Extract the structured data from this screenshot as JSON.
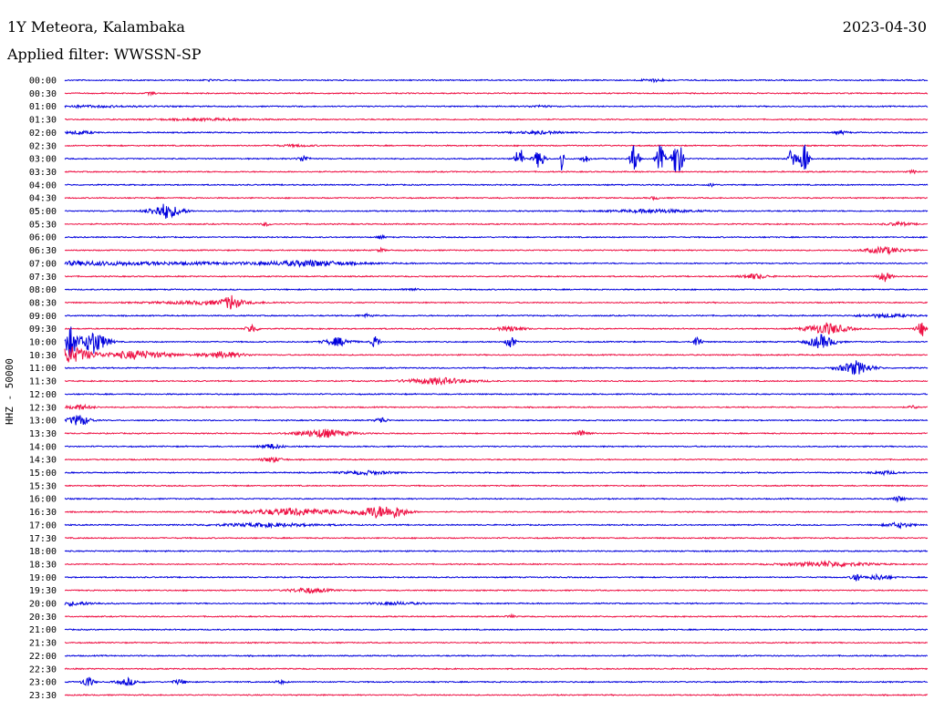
{
  "header": {
    "station": "1Y Meteora, Kalambaka",
    "date": "2023-04-30",
    "filter_label": "Applied filter: WWSSN-SP",
    "channel_label": "HHZ - 50000"
  },
  "colors": {
    "blue": "#0000dd",
    "red": "#ee1144"
  },
  "chart_data": {
    "type": "line",
    "title": "1Y Meteora, Kalambaka",
    "subtitle": "Applied filter: WWSSN-SP",
    "ylabel": "HHZ - 50000",
    "xlabel": "",
    "row_labels": [
      "00:00",
      "00:30",
      "01:00",
      "01:30",
      "02:00",
      "02:30",
      "03:00",
      "03:30",
      "04:00",
      "04:30",
      "05:00",
      "05:30",
      "06:00",
      "06:30",
      "07:00",
      "07:30",
      "08:00",
      "08:30",
      "09:00",
      "09:30",
      "10:00",
      "10:30",
      "11:00",
      "11:30",
      "12:00",
      "12:30",
      "13:00",
      "13:30",
      "14:00",
      "14:30",
      "15:00",
      "15:30",
      "16:00",
      "16:30",
      "17:00",
      "17:30",
      "18:00",
      "18:30",
      "19:00",
      "19:30",
      "20:00",
      "20:30",
      "21:00",
      "21:30",
      "22:00",
      "22:30",
      "23:00",
      "23:30"
    ],
    "row_colors": [
      "blue",
      "red"
    ],
    "minutes_per_row": 30,
    "events": [
      {
        "row": 0,
        "min": 5,
        "amp": 1,
        "dur": 0.3
      },
      {
        "row": 0,
        "min": 20.5,
        "amp": 1.5,
        "dur": 1
      },
      {
        "row": 1,
        "min": 3,
        "amp": 2,
        "dur": 0.3
      },
      {
        "row": 2,
        "min": 0.5,
        "amp": 1,
        "dur": 5
      },
      {
        "row": 2,
        "min": 16.5,
        "amp": 1,
        "dur": 1
      },
      {
        "row": 3,
        "min": 5,
        "amp": 1,
        "dur": 4
      },
      {
        "row": 4,
        "min": 0.5,
        "amp": 2,
        "dur": 1
      },
      {
        "row": 4,
        "min": 16.5,
        "amp": 1.5,
        "dur": 2
      },
      {
        "row": 4,
        "min": 27,
        "amp": 2,
        "dur": 0.5
      },
      {
        "row": 5,
        "min": 8,
        "amp": 1,
        "dur": 1.5
      },
      {
        "row": 6,
        "min": 8.3,
        "amp": 4,
        "dur": 0.4
      },
      {
        "row": 6,
        "min": 15.8,
        "amp": 20,
        "dur": 0.25
      },
      {
        "row": 6,
        "min": 16.5,
        "amp": 12,
        "dur": 0.4
      },
      {
        "row": 6,
        "min": 17.3,
        "amp": 25,
        "dur": 0.1
      },
      {
        "row": 6,
        "min": 18.1,
        "amp": 5,
        "dur": 0.3
      },
      {
        "row": 6,
        "min": 19.8,
        "amp": 22,
        "dur": 0.3
      },
      {
        "row": 6,
        "min": 20.7,
        "amp": 18,
        "dur": 0.3
      },
      {
        "row": 6,
        "min": 21.3,
        "amp": 30,
        "dur": 0.35
      },
      {
        "row": 6,
        "min": 25.3,
        "amp": 18,
        "dur": 0.25
      },
      {
        "row": 6,
        "min": 25.7,
        "amp": 22,
        "dur": 0.3
      },
      {
        "row": 7,
        "min": 29.5,
        "amp": 2,
        "dur": 0.3
      },
      {
        "row": 8,
        "min": 22.5,
        "amp": 2,
        "dur": 0.3
      },
      {
        "row": 9,
        "min": 20.5,
        "amp": 2,
        "dur": 0.3
      },
      {
        "row": 10,
        "min": 3.5,
        "amp": 9,
        "dur": 1.2
      },
      {
        "row": 10,
        "min": 20.5,
        "amp": 2,
        "dur": 3
      },
      {
        "row": 11,
        "min": 7,
        "amp": 2,
        "dur": 0.3
      },
      {
        "row": 11,
        "min": 29,
        "amp": 2,
        "dur": 1
      },
      {
        "row": 12,
        "min": 11,
        "amp": 2,
        "dur": 0.3
      },
      {
        "row": 13,
        "min": 11,
        "amp": 2,
        "dur": 0.3
      },
      {
        "row": 13,
        "min": 28.5,
        "amp": 4,
        "dur": 1.5
      },
      {
        "row": 14,
        "min": 0.5,
        "amp": 2,
        "dur": 15
      },
      {
        "row": 14,
        "min": 8.5,
        "amp": 3,
        "dur": 3
      },
      {
        "row": 15,
        "min": 24,
        "amp": 3,
        "dur": 1
      },
      {
        "row": 15,
        "min": 28.5,
        "amp": 6,
        "dur": 0.5
      },
      {
        "row": 16,
        "min": 12,
        "amp": 1.5,
        "dur": 0.6
      },
      {
        "row": 17,
        "min": 5,
        "amp": 2,
        "dur": 4
      },
      {
        "row": 17,
        "min": 5.8,
        "amp": 8,
        "dur": 0.6
      },
      {
        "row": 18,
        "min": 10.5,
        "amp": 1.5,
        "dur": 0.6
      },
      {
        "row": 18,
        "min": 28.5,
        "amp": 2,
        "dur": 2
      },
      {
        "row": 19,
        "min": 6.5,
        "amp": 6,
        "dur": 0.4
      },
      {
        "row": 19,
        "min": 15.5,
        "amp": 3,
        "dur": 1
      },
      {
        "row": 19,
        "min": 26.5,
        "amp": 7,
        "dur": 1.5
      },
      {
        "row": 19,
        "min": 29.8,
        "amp": 9,
        "dur": 0.4
      },
      {
        "row": 20,
        "min": 0.2,
        "amp": 18,
        "dur": 0.5
      },
      {
        "row": 20,
        "min": 1,
        "amp": 14,
        "dur": 1
      },
      {
        "row": 20,
        "min": 9.5,
        "amp": 5,
        "dur": 1
      },
      {
        "row": 20,
        "min": 10.8,
        "amp": 8,
        "dur": 0.3
      },
      {
        "row": 20,
        "min": 15.5,
        "amp": 10,
        "dur": 0.3
      },
      {
        "row": 20,
        "min": 22,
        "amp": 8,
        "dur": 0.3
      },
      {
        "row": 20,
        "min": 26.3,
        "amp": 8,
        "dur": 1
      },
      {
        "row": 21,
        "min": 0.2,
        "amp": 10,
        "dur": 1.5
      },
      {
        "row": 21,
        "min": 2.5,
        "amp": 5,
        "dur": 2.5
      },
      {
        "row": 21,
        "min": 5.5,
        "amp": 4,
        "dur": 1.5
      },
      {
        "row": 22,
        "min": 27.5,
        "amp": 8,
        "dur": 1.2
      },
      {
        "row": 23,
        "min": 13,
        "amp": 4,
        "dur": 2.5
      },
      {
        "row": 25,
        "min": 0.5,
        "amp": 3,
        "dur": 1
      },
      {
        "row": 25,
        "min": 29.5,
        "amp": 2,
        "dur": 0.3
      },
      {
        "row": 26,
        "min": 0.5,
        "amp": 7,
        "dur": 0.8
      },
      {
        "row": 26,
        "min": 11,
        "amp": 4,
        "dur": 0.4
      },
      {
        "row": 27,
        "min": 9,
        "amp": 5,
        "dur": 2
      },
      {
        "row": 27,
        "min": 18,
        "amp": 4,
        "dur": 0.5
      },
      {
        "row": 28,
        "min": 7.2,
        "amp": 3,
        "dur": 0.8
      },
      {
        "row": 29,
        "min": 7.2,
        "amp": 3,
        "dur": 0.8
      },
      {
        "row": 30,
        "min": 10.5,
        "amp": 2,
        "dur": 2
      },
      {
        "row": 30,
        "min": 28.5,
        "amp": 2,
        "dur": 1
      },
      {
        "row": 32,
        "min": 29,
        "amp": 3,
        "dur": 0.5
      },
      {
        "row": 33,
        "min": 8,
        "amp": 4,
        "dur": 4
      },
      {
        "row": 33,
        "min": 10.8,
        "amp": 6,
        "dur": 1.5
      },
      {
        "row": 33,
        "min": 11.5,
        "amp": 5,
        "dur": 1
      },
      {
        "row": 34,
        "min": 7,
        "amp": 2,
        "dur": 4
      },
      {
        "row": 34,
        "min": 29,
        "amp": 3,
        "dur": 1
      },
      {
        "row": 37,
        "min": 26.5,
        "amp": 3,
        "dur": 3
      },
      {
        "row": 38,
        "min": 27.5,
        "amp": 6,
        "dur": 0.3
      },
      {
        "row": 38,
        "min": 28.3,
        "amp": 3,
        "dur": 1
      },
      {
        "row": 39,
        "min": 8.5,
        "amp": 3,
        "dur": 1.5
      },
      {
        "row": 40,
        "min": 0.2,
        "amp": 2,
        "dur": 2
      },
      {
        "row": 40,
        "min": 11.5,
        "amp": 1.5,
        "dur": 2
      },
      {
        "row": 41,
        "min": 15.5,
        "amp": 2,
        "dur": 0.3
      },
      {
        "row": 46,
        "min": 0.8,
        "amp": 7,
        "dur": 0.4
      },
      {
        "row": 46,
        "min": 2.2,
        "amp": 4,
        "dur": 0.8
      },
      {
        "row": 46,
        "min": 4,
        "amp": 3,
        "dur": 0.5
      },
      {
        "row": 46,
        "min": 7.5,
        "amp": 2,
        "dur": 0.4
      }
    ]
  }
}
